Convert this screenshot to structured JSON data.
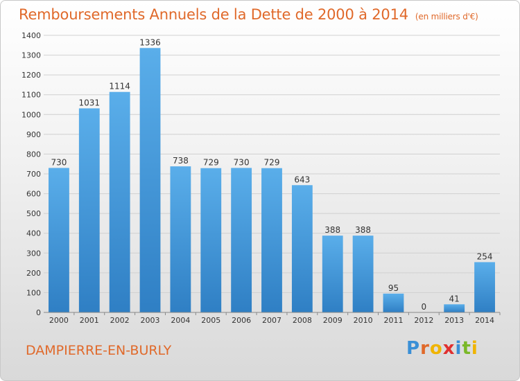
{
  "header": {
    "title": "Remboursements Annuels de la Dette de 2000 à 2014",
    "unit": "(en milliers d'€)"
  },
  "footer": {
    "city": "DAMPIERRE-EN-BURLY",
    "logo": {
      "letters": [
        "P",
        "r",
        "o",
        "x",
        "i",
        "t",
        "i"
      ],
      "colors": [
        "#3a8fd6",
        "#e0692a",
        "#f0b400",
        "#e03030",
        "#3a8fd6",
        "#7ab828",
        "#f0b400"
      ]
    }
  },
  "chart_data": {
    "type": "bar",
    "title": "Remboursements Annuels de la Dette de 2000 à 2014",
    "xlabel": "",
    "ylabel": "",
    "ylim": [
      0,
      1400
    ],
    "yticks": [
      0,
      100,
      200,
      300,
      400,
      500,
      600,
      700,
      800,
      900,
      1000,
      1100,
      1200,
      1300,
      1400
    ],
    "categories": [
      "2000",
      "2001",
      "2002",
      "2003",
      "2004",
      "2005",
      "2006",
      "2007",
      "2008",
      "2009",
      "2010",
      "2011",
      "2012",
      "2013",
      "2014"
    ],
    "values": [
      730,
      1031,
      1114,
      1336,
      738,
      729,
      730,
      729,
      643,
      388,
      388,
      95,
      0,
      41,
      254
    ],
    "colors": {
      "bar_top": "#5aaeea",
      "bar_bottom": "#2f7fc4",
      "grid": "#d0d0d0",
      "axis": "#888888"
    }
  }
}
